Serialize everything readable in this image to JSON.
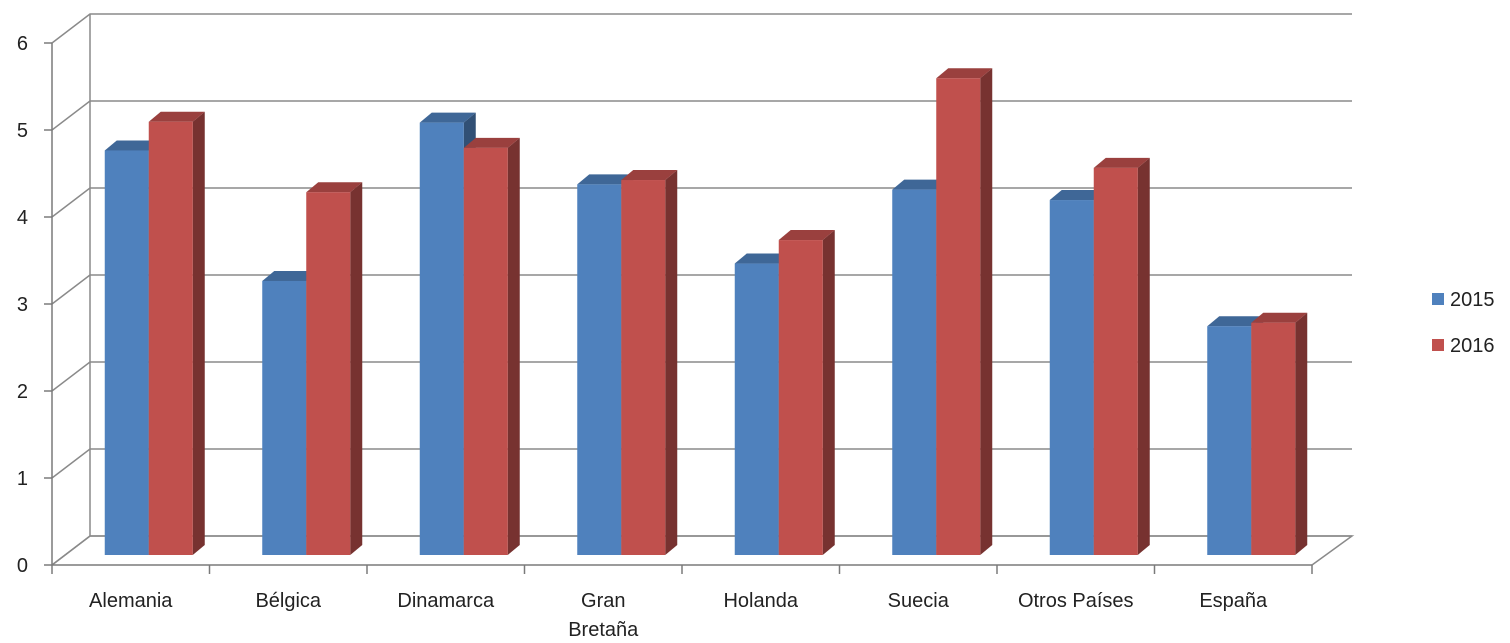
{
  "chart_data": {
    "type": "bar",
    "style": "3d-clustered-column",
    "categories": [
      [
        "Alemania"
      ],
      [
        "Bélgica"
      ],
      [
        "Dinamarca"
      ],
      [
        "Gran",
        "Bretaña"
      ],
      [
        "Holanda"
      ],
      [
        "Suecia"
      ],
      [
        "Otros Países"
      ],
      [
        "España"
      ]
    ],
    "series": [
      {
        "name": "2015",
        "color": "#4F81BD",
        "values": [
          4.65,
          3.15,
          4.97,
          4.26,
          3.35,
          4.2,
          4.08,
          2.63
        ]
      },
      {
        "name": "2016",
        "color": "#C0504D",
        "values": [
          4.98,
          4.17,
          4.68,
          4.31,
          3.62,
          5.48,
          4.45,
          2.67
        ]
      }
    ],
    "yticks": [
      "0",
      "1",
      "2",
      "3",
      "4",
      "5",
      "6"
    ],
    "ylim": [
      0,
      6
    ],
    "grid": true,
    "legend": "right"
  }
}
